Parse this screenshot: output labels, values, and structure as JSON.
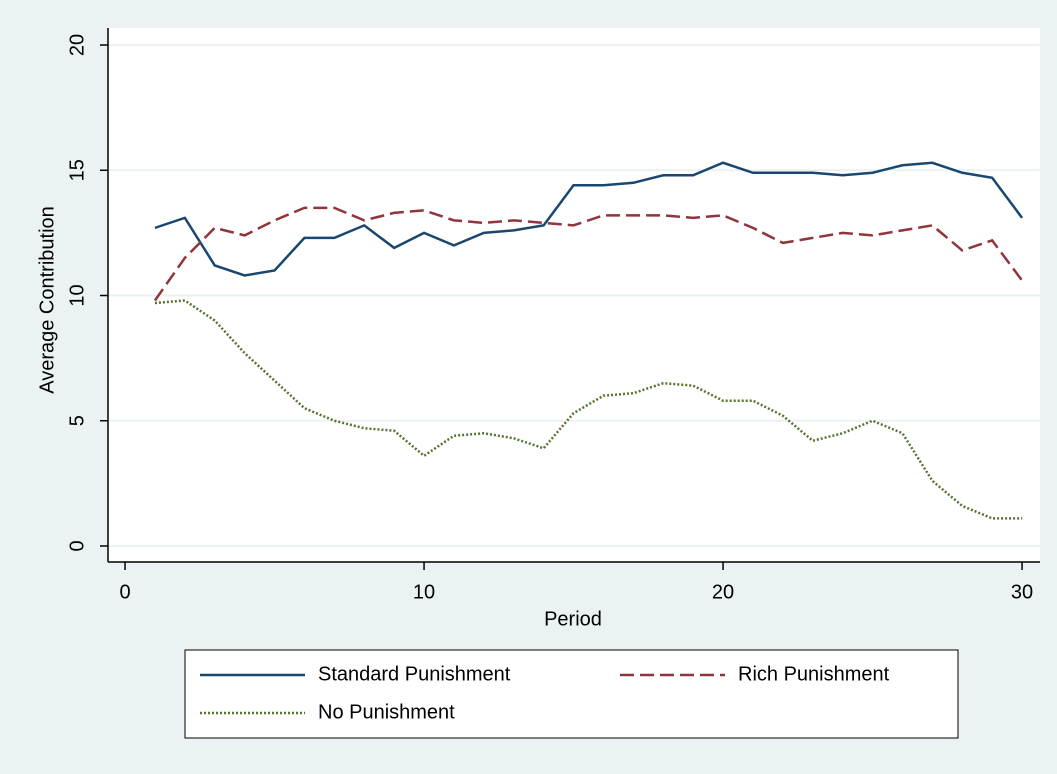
{
  "chart_data": {
    "type": "line",
    "x_label": "Period",
    "y_label": "Average Contribution",
    "x": [
      1,
      2,
      3,
      4,
      5,
      6,
      7,
      8,
      9,
      10,
      11,
      12,
      13,
      14,
      15,
      16,
      17,
      18,
      19,
      20,
      21,
      22,
      23,
      24,
      25,
      26,
      27,
      28,
      29,
      30
    ],
    "series": [
      {
        "name": "Standard Punishment",
        "color": "#1a476f",
        "line_style": "solid",
        "values": [
          12.7,
          13.1,
          11.2,
          10.8,
          11.0,
          12.3,
          12.3,
          12.8,
          11.9,
          12.5,
          12.0,
          12.5,
          12.6,
          12.8,
          14.4,
          14.4,
          14.5,
          14.8,
          14.8,
          15.3,
          14.9,
          14.9,
          14.9,
          14.8,
          14.9,
          15.2,
          15.3,
          14.9,
          14.7,
          13.1
        ]
      },
      {
        "name": "Rich Punishment",
        "color": "#90353b",
        "line_style": "dashed",
        "values": [
          9.8,
          11.5,
          12.7,
          12.4,
          13.0,
          13.5,
          13.5,
          13.0,
          13.3,
          13.4,
          13.0,
          12.9,
          13.0,
          12.9,
          12.8,
          13.2,
          13.2,
          13.2,
          13.1,
          13.2,
          12.7,
          12.1,
          12.3,
          12.5,
          12.4,
          12.6,
          12.8,
          11.8,
          12.2,
          10.6
        ]
      },
      {
        "name": "No Punishment",
        "color": "#55752f",
        "line_style": "dotted",
        "values": [
          9.7,
          9.8,
          9.0,
          7.7,
          6.6,
          5.5,
          5.0,
          4.7,
          4.6,
          3.6,
          4.4,
          4.5,
          4.3,
          3.9,
          5.3,
          6.0,
          6.1,
          6.5,
          6.4,
          5.8,
          5.8,
          5.2,
          4.2,
          4.5,
          5.0,
          4.5,
          2.6,
          1.6,
          1.1,
          1.1
        ]
      }
    ],
    "xlim": [
      -0.57,
      30.6
    ],
    "xticks": [
      0,
      10,
      20,
      30
    ],
    "ylim": [
      -0.64,
      20.68
    ],
    "yticks": [
      0,
      5,
      10,
      15,
      20
    ],
    "grid": true,
    "legend": "bottom"
  }
}
